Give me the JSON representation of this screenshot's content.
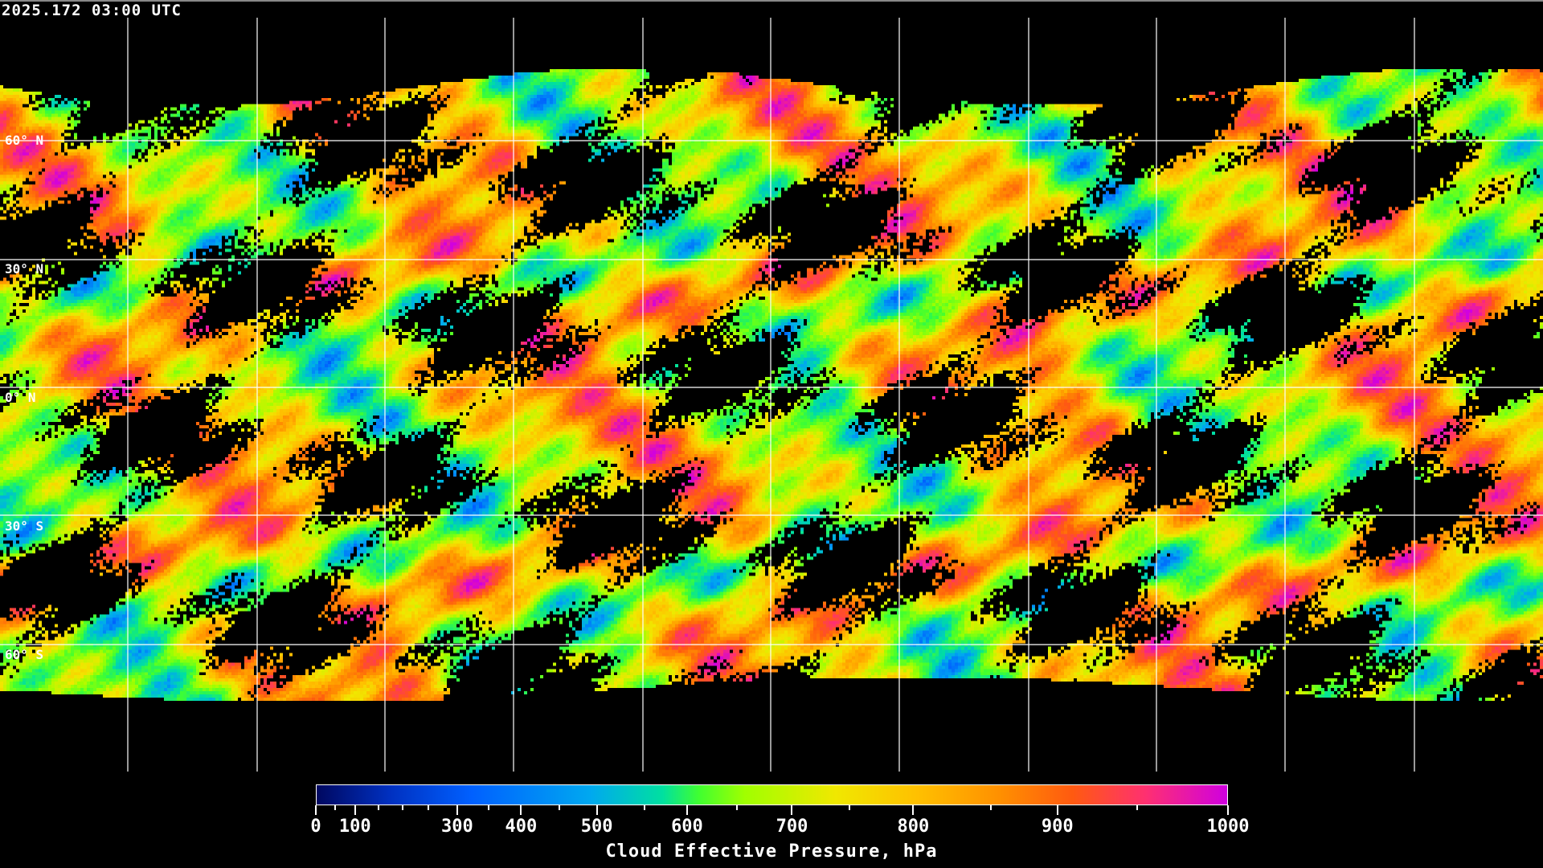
{
  "title": "2025.172 03:00 UTC",
  "lat_labels": [
    "60° N",
    "30° N",
    "0° N",
    "30° S",
    "60° S"
  ],
  "colorbar": {
    "title": "Cloud Effective Pressure, hPa",
    "min": 0,
    "max": 1000,
    "tick_labels": [
      "0",
      "100",
      "300",
      "400",
      "500",
      "600",
      "700",
      "800",
      "900",
      "1000"
    ],
    "colors": [
      "#000860",
      "#0030c0",
      "#0060ff",
      "#00a8f0",
      "#00e0a0",
      "#40ff30",
      "#a0ff00",
      "#f0e800",
      "#ffc000",
      "#ff9000",
      "#ff5a10",
      "#ff3070",
      "#d000e0"
    ],
    "no_data_color": "#000000"
  },
  "map": {
    "projection": "equirectangular",
    "graticule": "30 degree",
    "coastlines_color": "#ffffff",
    "grid_color": "#ffffff"
  }
}
